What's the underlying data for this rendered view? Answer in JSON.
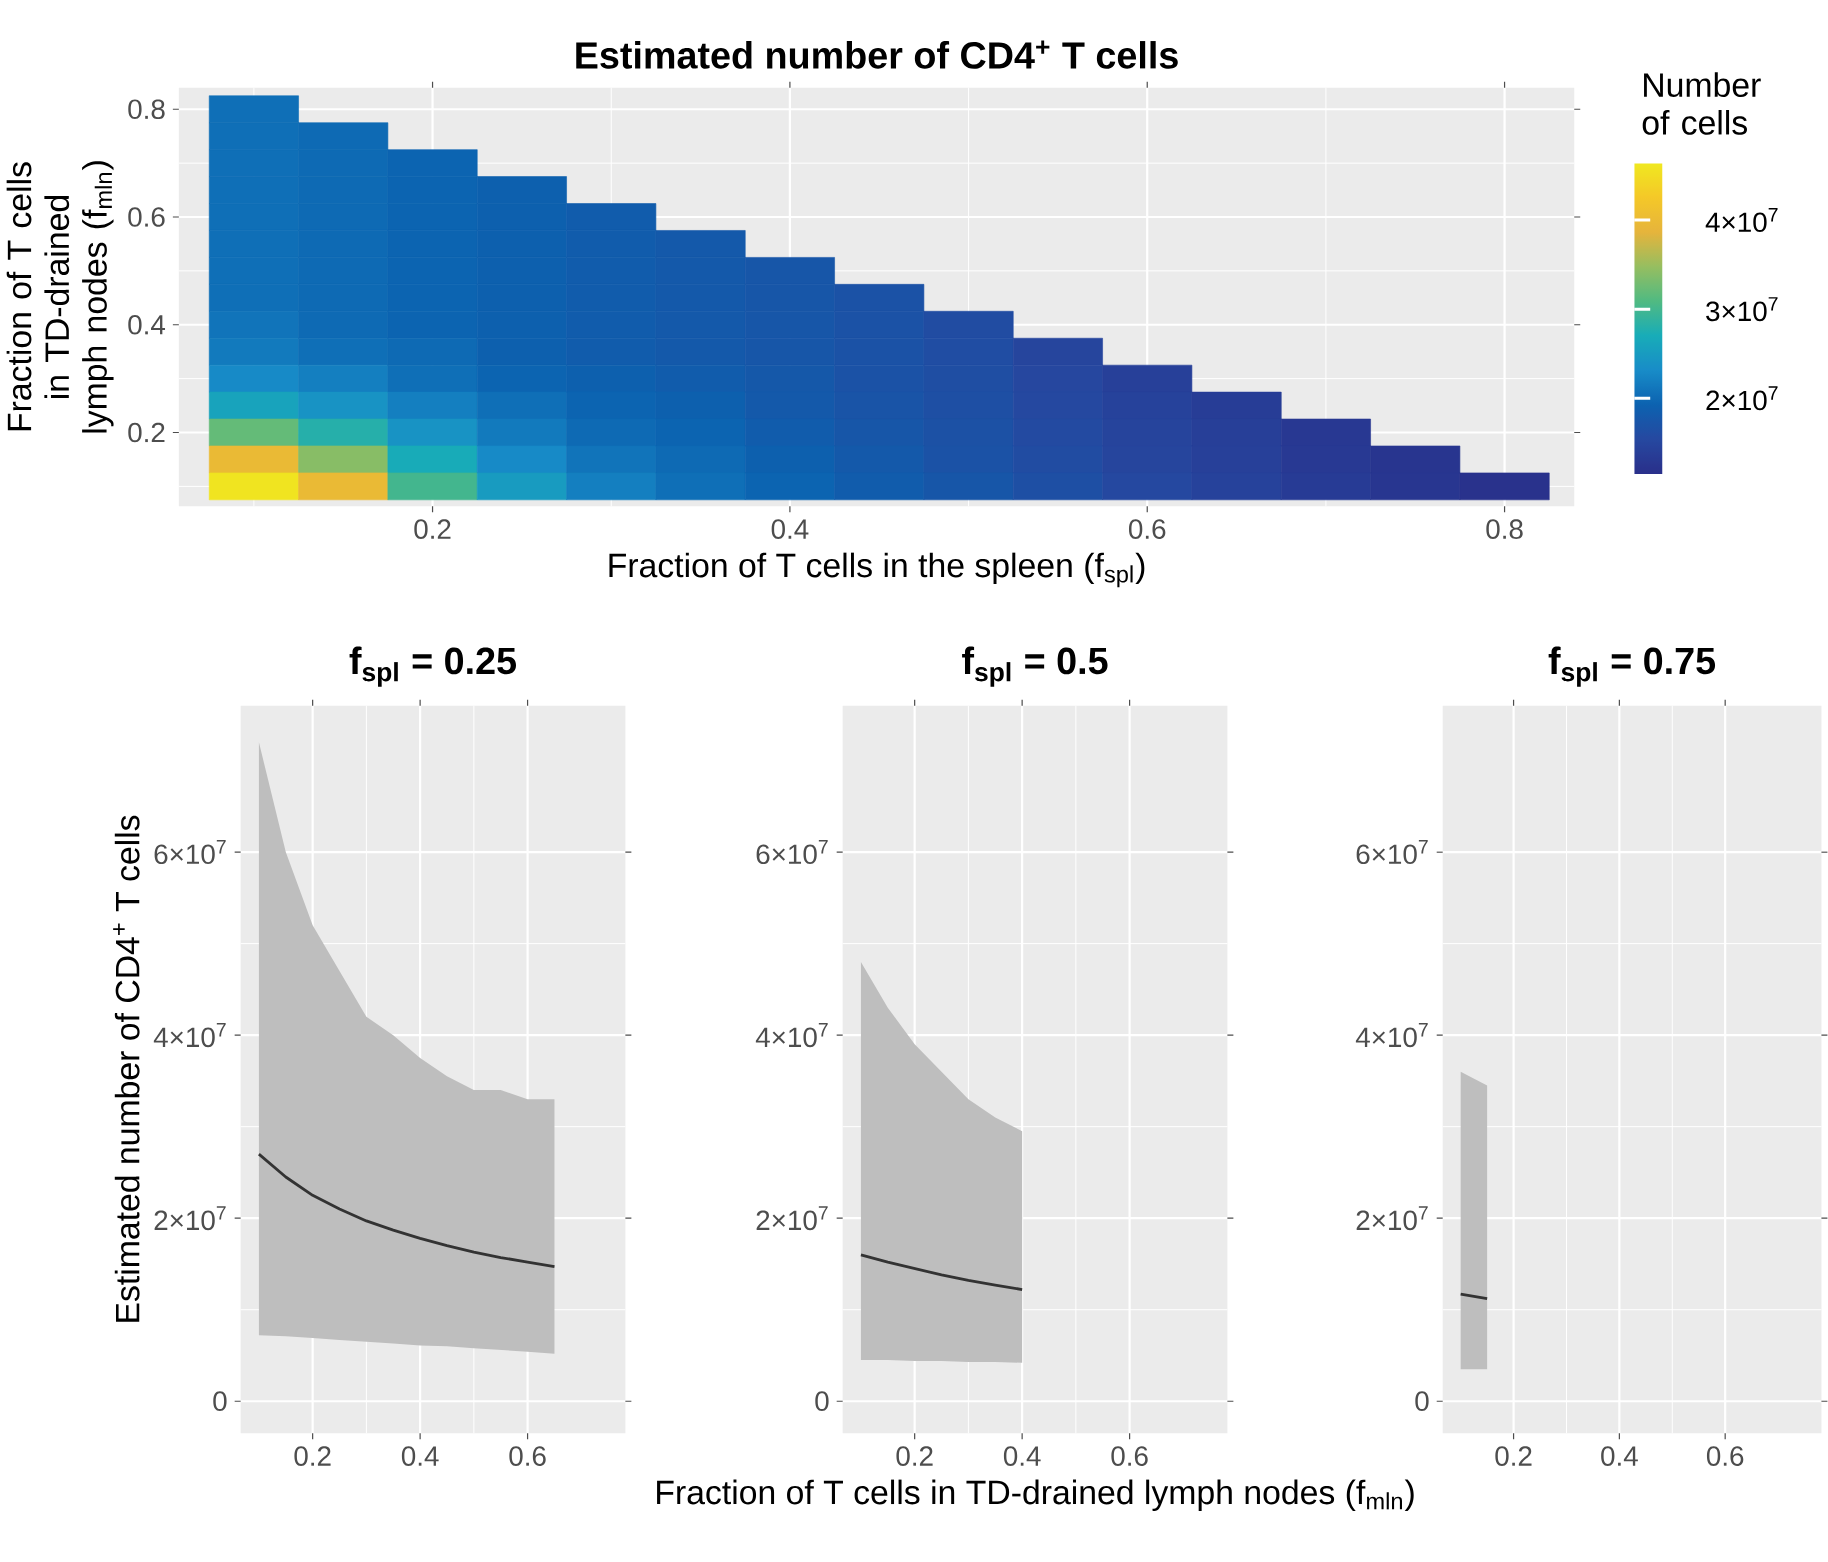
{
  "chart_data": [
    {
      "type": "heatmap",
      "title": "Estimated number of CD4$^{+}$ T cells",
      "xlabel": "Fraction of T cells in the spleen (f$_{spl}$)",
      "ylabel": "Fraction of T cells in TD-drained lymph nodes (f$_{mln}$)",
      "clabel": "Number of cells",
      "grid": true,
      "categories": [
        null,
        null,
        "0.2",
        null,
        null,
        null,
        "0.4",
        null,
        null,
        null,
        "0.6",
        null,
        null,
        null,
        "0.8"
      ],
      "y_categories": [
        "0.8",
        null,
        null,
        null,
        "0.6",
        null,
        null,
        null,
        "0.4",
        null,
        null,
        null,
        "0.2",
        null,
        null
      ],
      "clim": [
        11500000.0,
        46400000.0
      ],
      "cticks": [
        {
          "value": 20000000.0,
          "label": "2×10$^{7}$"
        },
        {
          "value": 30000000.0,
          "label": "3×10$^{7}$"
        },
        {
          "value": 40000000.0,
          "label": "4×10$^{7}$"
        }
      ],
      "cells": [
        [
          20500000.0,
          null,
          null,
          null,
          null,
          null,
          null,
          null,
          null,
          null,
          null,
          null,
          null,
          null,
          null
        ],
        [
          20500000.0,
          20000000.0,
          null,
          null,
          null,
          null,
          null,
          null,
          null,
          null,
          null,
          null,
          null,
          null,
          null
        ],
        [
          20500000.0,
          20000000.0,
          19500000.0,
          null,
          null,
          null,
          null,
          null,
          null,
          null,
          null,
          null,
          null,
          null,
          null
        ],
        [
          20500000.0,
          20000000.0,
          19500000.0,
          19000000.0,
          null,
          null,
          null,
          null,
          null,
          null,
          null,
          null,
          null,
          null,
          null
        ],
        [
          20500000.0,
          20000000.0,
          19500000.0,
          19000000.0,
          18500000.0,
          null,
          null,
          null,
          null,
          null,
          null,
          null,
          null,
          null,
          null
        ],
        [
          20500000.0,
          20000000.0,
          19500000.0,
          19000000.0,
          18500000.0,
          18000000.0,
          null,
          null,
          null,
          null,
          null,
          null,
          null,
          null,
          null
        ],
        [
          20500000.0,
          20000000.0,
          19500000.0,
          19000000.0,
          18500000.0,
          18000000.0,
          17500000.0,
          null,
          null,
          null,
          null,
          null,
          null,
          null,
          null
        ],
        [
          20500000.0,
          20000000.0,
          19500000.0,
          19000000.0,
          18500000.0,
          18000000.0,
          17500000.0,
          17000000.0,
          null,
          null,
          null,
          null,
          null,
          null,
          null
        ],
        [
          21000000.0,
          20000000.0,
          19500000.0,
          19000000.0,
          18500000.0,
          18000000.0,
          17500000.0,
          17000000.0,
          16000000.0,
          null,
          null,
          null,
          null,
          null,
          null
        ],
        [
          21500000.0,
          20500000.0,
          20000000.0,
          19000000.0,
          18500000.0,
          18000000.0,
          17500000.0,
          17000000.0,
          16200000.0,
          15000000.0,
          null,
          null,
          null,
          null,
          null
        ],
        [
          23000000.0,
          22000000.0,
          20500000.0,
          19500000.0,
          19000000.0,
          18500000.0,
          17800000.0,
          17000000.0,
          16300000.0,
          15300000.0,
          14200000.0,
          null,
          null,
          null,
          null
        ],
        [
          26000000.0,
          24000000.0,
          22000000.0,
          20500000.0,
          19500000.0,
          19000000.0,
          18000000.0,
          17200000.0,
          16500000.0,
          15500000.0,
          14500000.0,
          13700000.0,
          null,
          null,
          null
        ],
        [
          32000000.0,
          28000000.0,
          24000000.0,
          21500000.0,
          20000000.0,
          19500000.0,
          18500000.0,
          17500000.0,
          16800000.0,
          15800000.0,
          14800000.0,
          14000000.0,
          13000000.0,
          null,
          null
        ],
        [
          40000000.0,
          34000000.0,
          27000000.0,
          23000000.0,
          21000000.0,
          20000000.0,
          19000000.0,
          18000000.0,
          17000000.0,
          16000000.0,
          15000000.0,
          14200000.0,
          13200000.0,
          12500000.0,
          null
        ],
        [
          46000000.0,
          40000000.0,
          30000000.0,
          25000000.0,
          22000000.0,
          20500000.0,
          19500000.0,
          18500000.0,
          17500000.0,
          16500000.0,
          15500000.0,
          14500000.0,
          13500000.0,
          12700000.0,
          12000000.0
        ]
      ]
    },
    {
      "type": "line",
      "title": "f$_{spl}$ = 0.25",
      "ylabel": "Estimated number of CD4$^{+}$ T cells",
      "grid": true,
      "xlim": [
        0.066,
        0.782
      ],
      "ylim": [
        -3500000.0,
        76000000.0
      ],
      "xticks": [
        0.2,
        0.4,
        0.6
      ],
      "yticks": [
        0,
        {
          "value": 20000000.0,
          "label": "2×10$^{7}$"
        },
        {
          "value": 40000000.0,
          "label": "4×10$^{7}$"
        },
        {
          "value": 60000000.0,
          "label": "6×10$^{7}$"
        }
      ],
      "x": [
        0.1,
        0.15,
        0.2,
        0.25,
        0.3,
        0.35,
        0.4,
        0.45,
        0.5,
        0.55,
        0.6,
        0.65
      ],
      "series": [
        {
          "color": "#333333",
          "values": [
            27000000.0,
            24500000.0,
            22500000.0,
            21000000.0,
            19700000.0,
            18700000.0,
            17800000.0,
            17000000.0,
            16300000.0,
            15700000.0,
            15200000.0,
            14700000.0
          ],
          "upper": [
            72000000.0,
            60000000.0,
            52000000.0,
            47000000.0,
            42000000.0,
            40000000.0,
            37500000.0,
            35500000.0,
            34000000.0,
            34000000.0,
            33000000.0,
            33000000.0
          ],
          "lower": [
            7200000.0,
            7100000.0,
            6900000.0,
            6700000.0,
            6500000.0,
            6300000.0,
            6100000.0,
            6000000.0,
            5800000.0,
            5600000.0,
            5400000.0,
            5200000.0
          ]
        }
      ]
    },
    {
      "type": "line",
      "title": "f$_{spl}$ = 0.5",
      "xlabel": "Fraction of T cells in TD-drained lymph nodes (f$_{mln}$)",
      "grid": true,
      "xlim": [
        0.066,
        0.782
      ],
      "ylim": [
        -3500000.0,
        76000000.0
      ],
      "xticks": [
        0.2,
        0.4,
        0.6
      ],
      "yticks": [
        0,
        {
          "value": 20000000.0,
          "label": "2×10$^{7}$"
        },
        {
          "value": 40000000.0,
          "label": "4×10$^{7}$"
        },
        {
          "value": 60000000.0,
          "label": "6×10$^{7}$"
        }
      ],
      "x": [
        0.1,
        0.15,
        0.2,
        0.25,
        0.3,
        0.35,
        0.4
      ],
      "series": [
        {
          "color": "#333333",
          "values": [
            16000000.0,
            15200000.0,
            14500000.0,
            13800000.0,
            13200000.0,
            12700000.0,
            12200000.0
          ],
          "upper": [
            48000000.0,
            43000000.0,
            39000000.0,
            36000000.0,
            33000000.0,
            31000000.0,
            29500000.0
          ],
          "lower": [
            4500000.0,
            4500000.0,
            4400000.0,
            4400000.0,
            4300000.0,
            4300000.0,
            4200000.0
          ]
        }
      ]
    },
    {
      "type": "line",
      "title": "f$_{spl}$ = 0.75",
      "grid": true,
      "xlim": [
        0.066,
        0.782
      ],
      "ylim": [
        -3500000.0,
        76000000.0
      ],
      "xticks": [
        0.2,
        0.4,
        0.6
      ],
      "yticks": [
        0,
        {
          "value": 20000000.0,
          "label": "2×10$^{7}$"
        },
        {
          "value": 40000000.0,
          "label": "4×10$^{7}$"
        },
        {
          "value": 60000000.0,
          "label": "6×10$^{7}$"
        }
      ],
      "x": [
        0.1,
        0.15
      ],
      "series": [
        {
          "color": "#333333",
          "values": [
            11700000.0,
            11200000.0
          ],
          "upper": [
            36000000.0,
            34500000.0
          ],
          "lower": [
            3500000.0,
            3500000.0
          ]
        }
      ]
    }
  ]
}
